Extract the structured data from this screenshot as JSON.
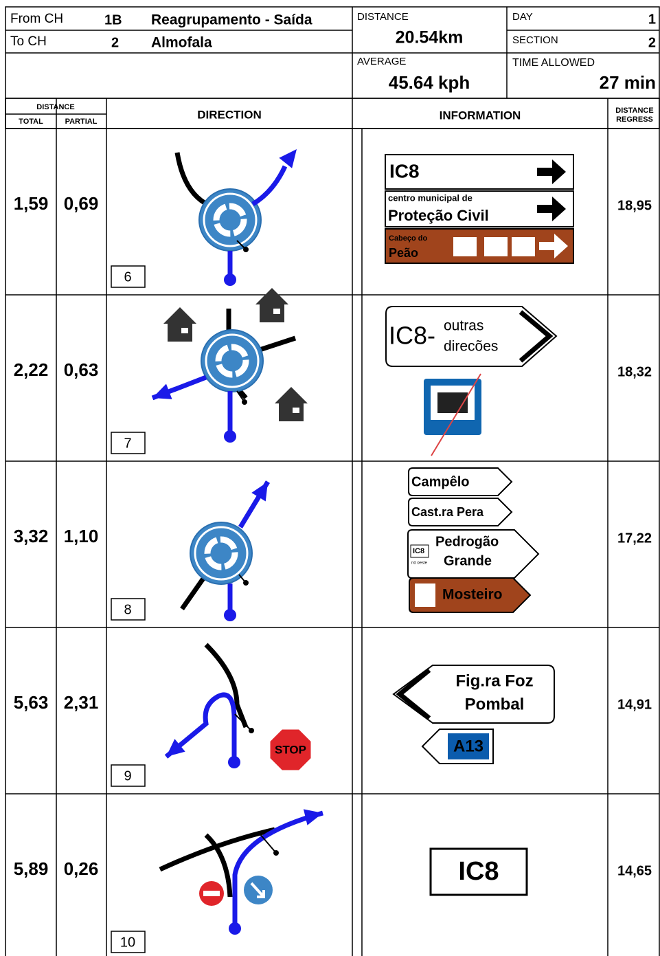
{
  "header": {
    "from_label": "From CH",
    "from_ch": "1B",
    "from_name": "Reagrupamento - Saída",
    "to_label": "To CH",
    "to_ch": "2",
    "to_name": "Almofala",
    "distance_label": "DISTANCE",
    "distance": "20.54km",
    "day_label": "DAY",
    "day": "1",
    "section_label": "SECTION",
    "section": "2",
    "average_label": "AVERAGE",
    "average": "45.64 kph",
    "time_label": "TIME ALLOWED",
    "time": "27 min"
  },
  "columns": {
    "distance": "DISTANCE",
    "total": "TOTAL",
    "partial": "PARTIAL",
    "direction": "DIRECTION",
    "information": "INFORMATION",
    "regress_top": "DISTANCE",
    "regress_bottom": "REGRESS"
  },
  "rows": [
    {
      "total": "1,59",
      "partial": "0,69",
      "box": "6",
      "regress": "18,95",
      "signs": [
        "IC8",
        "centro municipal de",
        "Proteção Civil",
        "Cabeço do",
        "Peão"
      ]
    },
    {
      "total": "2,22",
      "partial": "0,63",
      "box": "7",
      "regress": "18,32",
      "signs": [
        "IC8-",
        "outras",
        "direcões"
      ]
    },
    {
      "total": "3,32",
      "partial": "1,10",
      "box": "8",
      "regress": "17,22",
      "signs": [
        "Campêlo",
        "Cast.ra Pera",
        "IC8",
        "nó oeste",
        "Pedrogão",
        "Grande",
        "Mosteiro"
      ]
    },
    {
      "total": "5,63",
      "partial": "2,31",
      "box": "9",
      "regress": "14,91",
      "signs": [
        "STOP",
        "Fig.ra Foz",
        "Pombal",
        "A13"
      ]
    },
    {
      "total": "5,89",
      "partial": "0,26",
      "box": "10",
      "regress": "14,65",
      "signs": [
        "IC8"
      ]
    }
  ]
}
